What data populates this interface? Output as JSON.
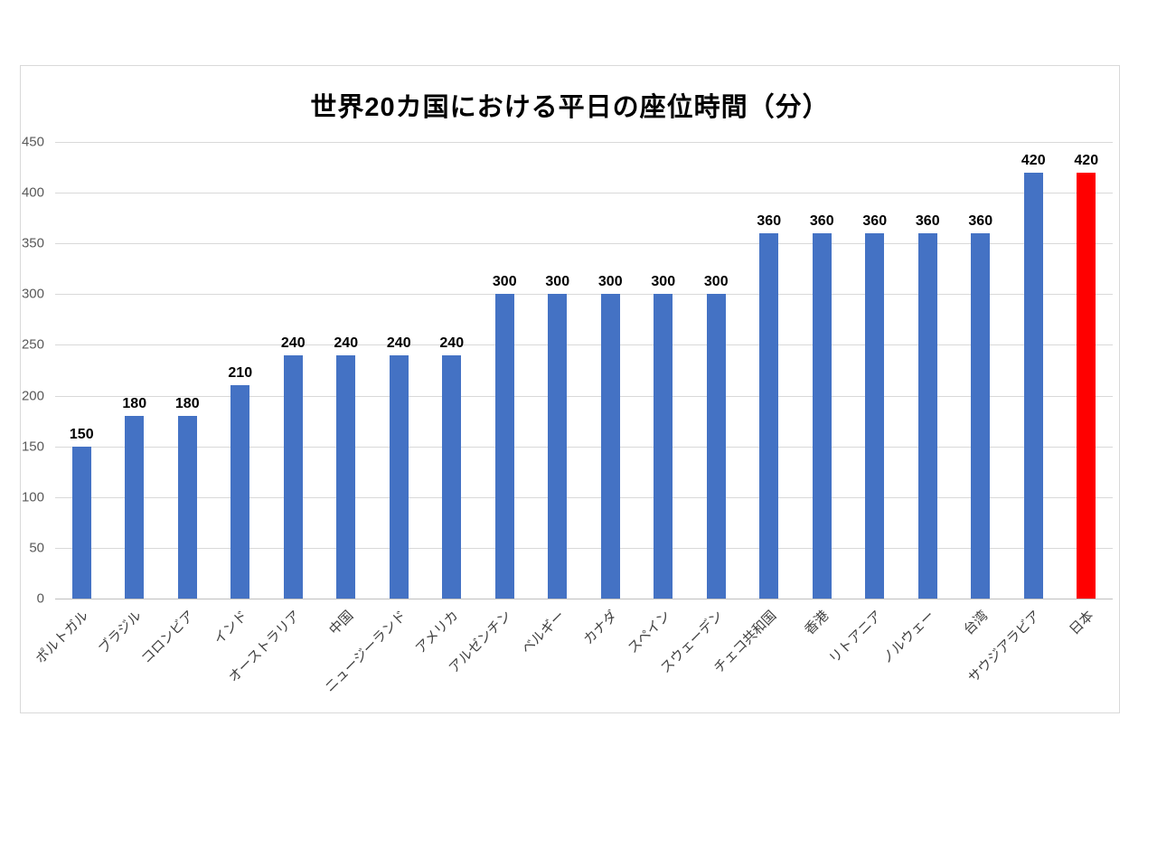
{
  "chart_data": {
    "type": "bar",
    "title": "世界20カ国における平日の座位時間（分）",
    "xlabel": "",
    "ylabel": "",
    "categories": [
      "ポルトガル",
      "ブラジル",
      "コロンビア",
      "インド",
      "オーストラリア",
      "中国",
      "ニュージーランド",
      "アメリカ",
      "アルゼンチン",
      "ベルギー",
      "カナダ",
      "スペイン",
      "スウェーデン",
      "チェコ共和国",
      "香港",
      "リトアニア",
      "ノルウェー",
      "台湾",
      "サウジアラビア",
      "日本"
    ],
    "values": [
      150,
      180,
      180,
      210,
      240,
      240,
      240,
      240,
      300,
      300,
      300,
      300,
      300,
      360,
      360,
      360,
      360,
      360,
      420,
      420
    ],
    "data_labels": [
      150,
      180,
      180,
      210,
      240,
      240,
      240,
      240,
      300,
      300,
      300,
      300,
      300,
      360,
      360,
      360,
      360,
      360,
      420,
      420
    ],
    "ylim": [
      0,
      450
    ],
    "yticks": [
      0,
      50,
      100,
      150,
      200,
      250,
      300,
      350,
      400,
      450
    ],
    "grid": "horizontal",
    "legend": "none",
    "category_label_rotation_deg": 45,
    "colors": {
      "bar_default": "#4472C4",
      "bar_highlight": "#FF0000",
      "gridline": "#D9D9D9",
      "axis_line": "#BFBFBF",
      "value_tick_label": "#595959",
      "category_label": "#404040",
      "data_label": "#000000",
      "title": "#000000",
      "frame_border": "#D9D9D9",
      "background": "#FFFFFF"
    },
    "highlight": {
      "category": "日本",
      "index": 19
    }
  }
}
